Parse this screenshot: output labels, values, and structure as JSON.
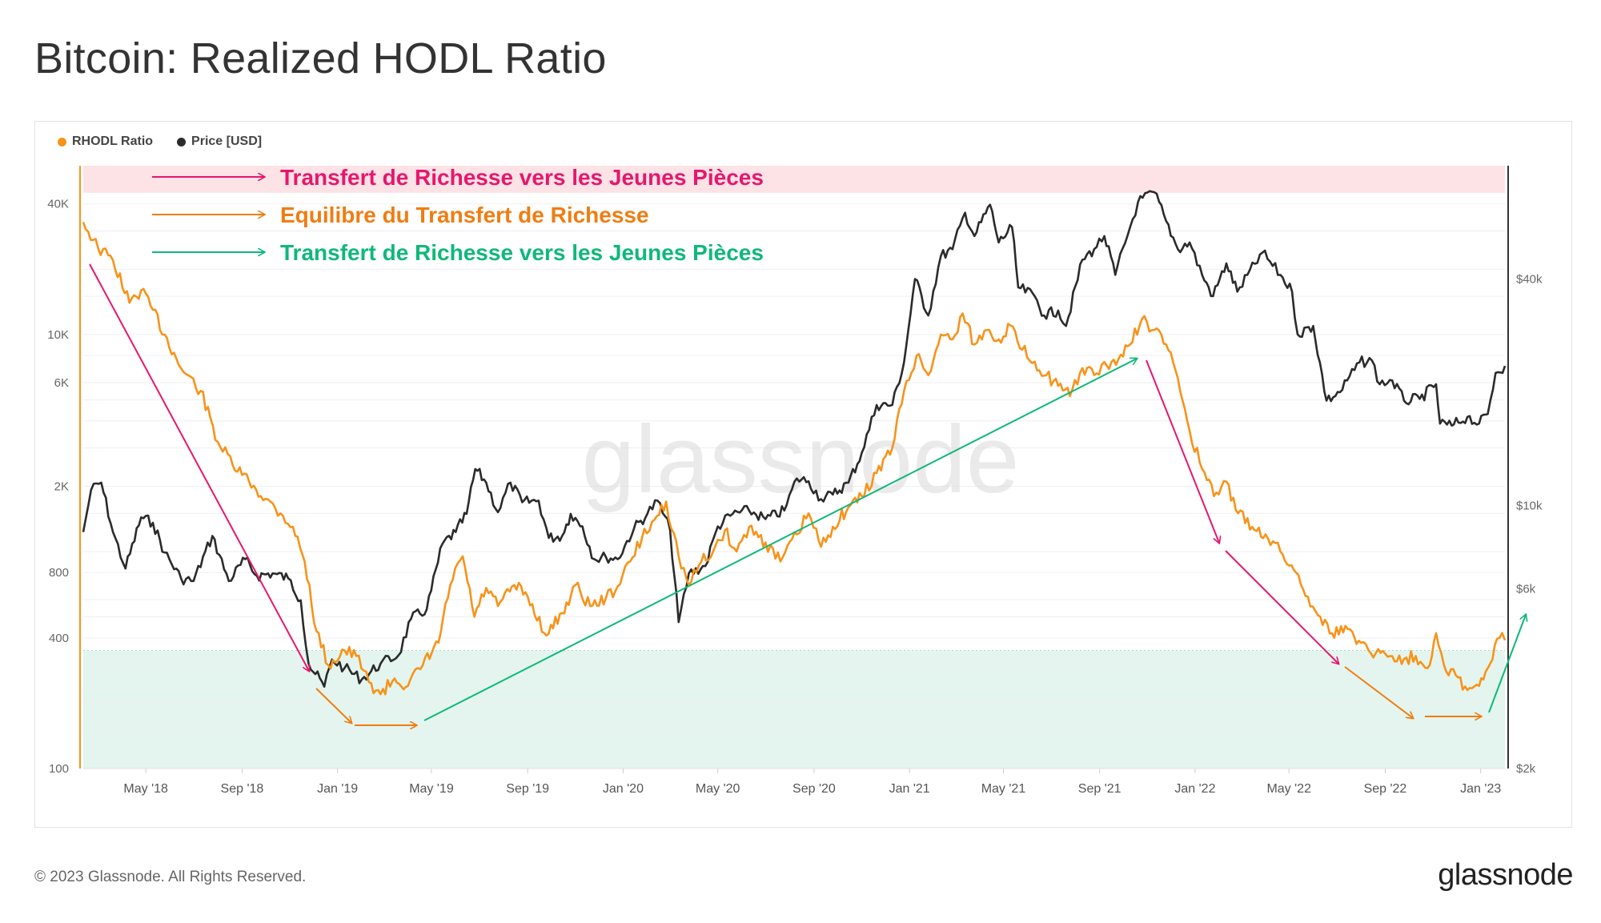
{
  "title": "Bitcoin: Realized HODL Ratio",
  "footer": {
    "copyright": "© 2023 Glassnode. All Rights Reserved.",
    "logo": "glassnode",
    "watermark": "glassnode"
  },
  "colors": {
    "rhodl": "#f7931a",
    "price": "#2b2b2b",
    "magenta": "#e6176d",
    "orange": "#f07d12",
    "green": "#0fb87a",
    "top_band": "#fde3e6",
    "bottom_band": "#e3f5ee"
  },
  "annotations": [
    {
      "text": "Transfert de Richesse vers les Jeunes Pièces",
      "color": "#e6176d"
    },
    {
      "text": "Equilibre du Transfert de Richesse",
      "color": "#f07d12"
    },
    {
      "text": "Transfert de Richesse vers les Jeunes Pièces",
      "color": "#0fb87a"
    }
  ],
  "chart_data": {
    "type": "line",
    "title": "Bitcoin: Realized HODL Ratio",
    "x_ticks": [
      "May '18",
      "Sep '18",
      "Jan '19",
      "May '19",
      "Sep '19",
      "Jan '20",
      "May '20",
      "Sep '20",
      "Jan '21",
      "May '21",
      "Sep '21",
      "Jan '22",
      "May '22",
      "Sep '22",
      "Jan '23"
    ],
    "x_range": [
      "2018-02-10",
      "2023-02-01"
    ],
    "y_left": {
      "scale": "log",
      "ticks": [
        "100",
        "400",
        "800",
        "2K",
        "6K",
        "10K",
        "40K"
      ],
      "tick_values": [
        100,
        400,
        800,
        2000,
        6000,
        10000,
        40000
      ],
      "range": [
        100,
        60000
      ]
    },
    "y_right": {
      "scale": "log",
      "ticks": [
        "$2k",
        "$6k",
        "$10k",
        "$40k"
      ],
      "tick_values": [
        2000,
        6000,
        10000,
        40000
      ],
      "range": [
        2000,
        80000
      ]
    },
    "bands": [
      {
        "axis": "left",
        "from": 45000,
        "to": 60000,
        "color": "#fde3e6"
      },
      {
        "axis": "left",
        "from": 100,
        "to": 350,
        "color": "#e3f5ee"
      }
    ],
    "legend": {
      "placement": "top-left"
    },
    "series": [
      {
        "name": "RHODL Ratio",
        "axis": "left",
        "color": "#f7931a",
        "points": [
          [
            "2018-02-10",
            33000
          ],
          [
            "2018-03-01",
            25000
          ],
          [
            "2018-03-20",
            22000
          ],
          [
            "2018-04-10",
            14000
          ],
          [
            "2018-04-25",
            16000
          ],
          [
            "2018-05-10",
            13000
          ],
          [
            "2018-05-25",
            10000
          ],
          [
            "2018-06-15",
            7000
          ],
          [
            "2018-07-10",
            5500
          ],
          [
            "2018-08-01",
            3200
          ],
          [
            "2018-08-20",
            2500
          ],
          [
            "2018-09-10",
            2100
          ],
          [
            "2018-10-01",
            1750
          ],
          [
            "2018-10-20",
            1500
          ],
          [
            "2018-11-05",
            1300
          ],
          [
            "2018-11-20",
            900
          ],
          [
            "2018-12-05",
            430
          ],
          [
            "2018-12-20",
            300
          ],
          [
            "2019-01-10",
            350
          ],
          [
            "2019-01-25",
            330
          ],
          [
            "2019-02-10",
            250
          ],
          [
            "2019-02-25",
            220
          ],
          [
            "2019-03-15",
            260
          ],
          [
            "2019-04-01",
            240
          ],
          [
            "2019-04-20",
            300
          ],
          [
            "2019-05-10",
            380
          ],
          [
            "2019-05-25",
            700
          ],
          [
            "2019-06-10",
            950
          ],
          [
            "2019-06-25",
            500
          ],
          [
            "2019-07-10",
            680
          ],
          [
            "2019-07-25",
            560
          ],
          [
            "2019-08-15",
            700
          ],
          [
            "2019-09-01",
            620
          ],
          [
            "2019-09-25",
            410
          ],
          [
            "2019-10-15",
            520
          ],
          [
            "2019-11-01",
            700
          ],
          [
            "2019-11-20",
            560
          ],
          [
            "2019-12-10",
            610
          ],
          [
            "2019-12-25",
            690
          ],
          [
            "2020-01-10",
            900
          ],
          [
            "2020-01-25",
            1150
          ],
          [
            "2020-02-10",
            1400
          ],
          [
            "2020-02-25",
            1700
          ],
          [
            "2020-03-12",
            950
          ],
          [
            "2020-03-25",
            700
          ],
          [
            "2020-04-10",
            900
          ],
          [
            "2020-04-25",
            1000
          ],
          [
            "2020-05-10",
            1250
          ],
          [
            "2020-05-25",
            1000
          ],
          [
            "2020-06-10",
            1300
          ],
          [
            "2020-07-01",
            1100
          ],
          [
            "2020-07-20",
            900
          ],
          [
            "2020-08-10",
            1200
          ],
          [
            "2020-08-25",
            1500
          ],
          [
            "2020-09-10",
            1050
          ],
          [
            "2020-09-25",
            1300
          ],
          [
            "2020-10-15",
            1600
          ],
          [
            "2020-11-01",
            1800
          ],
          [
            "2020-11-20",
            2300
          ],
          [
            "2020-12-10",
            3000
          ],
          [
            "2020-12-25",
            5500
          ],
          [
            "2021-01-10",
            8000
          ],
          [
            "2021-01-25",
            6500
          ],
          [
            "2021-02-10",
            10000
          ],
          [
            "2021-02-25",
            9500
          ],
          [
            "2021-03-10",
            12500
          ],
          [
            "2021-03-25",
            9000
          ],
          [
            "2021-04-10",
            10500
          ],
          [
            "2021-04-25",
            9500
          ],
          [
            "2021-05-10",
            11000
          ],
          [
            "2021-05-25",
            8500
          ],
          [
            "2021-06-10",
            7500
          ],
          [
            "2021-06-25",
            6500
          ],
          [
            "2021-07-10",
            5800
          ],
          [
            "2021-07-25",
            5200
          ],
          [
            "2021-08-10",
            7000
          ],
          [
            "2021-08-25",
            6500
          ],
          [
            "2021-09-10",
            7200
          ],
          [
            "2021-09-25",
            7700
          ],
          [
            "2021-10-10",
            9000
          ],
          [
            "2021-10-25",
            11800
          ],
          [
            "2021-11-10",
            10500
          ],
          [
            "2021-11-25",
            9000
          ],
          [
            "2021-12-10",
            6300
          ],
          [
            "2021-12-25",
            3600
          ],
          [
            "2022-01-10",
            2400
          ],
          [
            "2022-01-25",
            1800
          ],
          [
            "2022-02-10",
            2100
          ],
          [
            "2022-02-25",
            1500
          ],
          [
            "2022-03-15",
            1300
          ],
          [
            "2022-04-01",
            1200
          ],
          [
            "2022-04-20",
            1000
          ],
          [
            "2022-05-10",
            800
          ],
          [
            "2022-05-25",
            620
          ],
          [
            "2022-06-10",
            500
          ],
          [
            "2022-06-25",
            420
          ],
          [
            "2022-07-15",
            440
          ],
          [
            "2022-08-01",
            380
          ],
          [
            "2022-08-20",
            340
          ],
          [
            "2022-09-10",
            330
          ],
          [
            "2022-09-25",
            320
          ],
          [
            "2022-10-10",
            330
          ],
          [
            "2022-10-25",
            290
          ],
          [
            "2022-11-05",
            420
          ],
          [
            "2022-11-15",
            300
          ],
          [
            "2022-11-30",
            270
          ],
          [
            "2022-12-15",
            230
          ],
          [
            "2022-12-30",
            240
          ],
          [
            "2023-01-10",
            290
          ],
          [
            "2023-01-25",
            400
          ],
          [
            "2023-02-01",
            390
          ]
        ]
      },
      {
        "name": "Price [USD]",
        "axis": "right",
        "color": "#2b2b2b",
        "points": [
          [
            "2018-02-10",
            8500
          ],
          [
            "2018-02-20",
            11000
          ],
          [
            "2018-03-05",
            11500
          ],
          [
            "2018-03-20",
            8500
          ],
          [
            "2018-04-05",
            6800
          ],
          [
            "2018-04-25",
            9300
          ],
          [
            "2018-05-10",
            9000
          ],
          [
            "2018-05-25",
            7500
          ],
          [
            "2018-06-15",
            6400
          ],
          [
            "2018-07-01",
            6300
          ],
          [
            "2018-07-25",
            8300
          ],
          [
            "2018-08-15",
            6300
          ],
          [
            "2018-09-05",
            7200
          ],
          [
            "2018-09-20",
            6500
          ],
          [
            "2018-10-10",
            6600
          ],
          [
            "2018-10-30",
            6400
          ],
          [
            "2018-11-15",
            5600
          ],
          [
            "2018-11-25",
            3800
          ],
          [
            "2018-12-15",
            3300
          ],
          [
            "2018-12-25",
            3900
          ],
          [
            "2019-01-10",
            3700
          ],
          [
            "2019-02-01",
            3450
          ],
          [
            "2019-02-25",
            3800
          ],
          [
            "2019-03-20",
            4000
          ],
          [
            "2019-04-05",
            5000
          ],
          [
            "2019-04-25",
            5300
          ],
          [
            "2019-05-15",
            7900
          ],
          [
            "2019-06-01",
            8500
          ],
          [
            "2019-06-15",
            9500
          ],
          [
            "2019-06-26",
            12500
          ],
          [
            "2019-07-10",
            11500
          ],
          [
            "2019-07-25",
            9600
          ],
          [
            "2019-08-10",
            11500
          ],
          [
            "2019-08-25",
            10200
          ],
          [
            "2019-09-15",
            10300
          ],
          [
            "2019-09-28",
            8200
          ],
          [
            "2019-10-15",
            8300
          ],
          [
            "2019-10-26",
            9500
          ],
          [
            "2019-11-10",
            8800
          ],
          [
            "2019-11-25",
            7200
          ],
          [
            "2019-12-10",
            7300
          ],
          [
            "2019-12-25",
            7200
          ],
          [
            "2020-01-15",
            8700
          ],
          [
            "2020-02-01",
            9500
          ],
          [
            "2020-02-14",
            10300
          ],
          [
            "2020-03-01",
            8600
          ],
          [
            "2020-03-12",
            4900
          ],
          [
            "2020-03-25",
            6600
          ],
          [
            "2020-04-15",
            6900
          ],
          [
            "2020-05-01",
            8800
          ],
          [
            "2020-05-20",
            9500
          ],
          [
            "2020-06-10",
            9700
          ],
          [
            "2020-07-01",
            9200
          ],
          [
            "2020-07-25",
            9700
          ],
          [
            "2020-08-10",
            11800
          ],
          [
            "2020-08-25",
            11600
          ],
          [
            "2020-09-10",
            10400
          ],
          [
            "2020-09-25",
            10700
          ],
          [
            "2020-10-15",
            11500
          ],
          [
            "2020-11-01",
            13800
          ],
          [
            "2020-11-20",
            18500
          ],
          [
            "2020-12-10",
            18500
          ],
          [
            "2020-12-25",
            24000
          ],
          [
            "2021-01-08",
            40000
          ],
          [
            "2021-01-25",
            32000
          ],
          [
            "2021-02-10",
            46000
          ],
          [
            "2021-02-25",
            48000
          ],
          [
            "2021-03-13",
            60000
          ],
          [
            "2021-03-25",
            52000
          ],
          [
            "2021-04-14",
            63000
          ],
          [
            "2021-04-25",
            50000
          ],
          [
            "2021-05-12",
            55000
          ],
          [
            "2021-05-20",
            38000
          ],
          [
            "2021-06-10",
            36000
          ],
          [
            "2021-06-22",
            32000
          ],
          [
            "2021-07-10",
            33000
          ],
          [
            "2021-07-20",
            30000
          ],
          [
            "2021-08-10",
            45000
          ],
          [
            "2021-08-25",
            48000
          ],
          [
            "2021-09-07",
            52000
          ],
          [
            "2021-09-21",
            41000
          ],
          [
            "2021-10-10",
            55000
          ],
          [
            "2021-10-20",
            64000
          ],
          [
            "2021-11-10",
            68000
          ],
          [
            "2021-11-25",
            57000
          ],
          [
            "2021-12-10",
            48000
          ],
          [
            "2021-12-25",
            50000
          ],
          [
            "2022-01-10",
            41000
          ],
          [
            "2022-01-24",
            36000
          ],
          [
            "2022-02-10",
            44000
          ],
          [
            "2022-02-24",
            37000
          ],
          [
            "2022-03-28",
            47000
          ],
          [
            "2022-04-20",
            41000
          ],
          [
            "2022-05-05",
            37000
          ],
          [
            "2022-05-12",
            28500
          ],
          [
            "2022-06-01",
            30000
          ],
          [
            "2022-06-18",
            19000
          ],
          [
            "2022-07-05",
            20000
          ],
          [
            "2022-07-30",
            24000
          ],
          [
            "2022-08-15",
            24300
          ],
          [
            "2022-08-25",
            21000
          ],
          [
            "2022-09-10",
            21500
          ],
          [
            "2022-09-25",
            19000
          ],
          [
            "2022-10-15",
            19200
          ],
          [
            "2022-11-05",
            21000
          ],
          [
            "2022-11-10",
            16500
          ],
          [
            "2022-11-25",
            16300
          ],
          [
            "2022-12-15",
            17200
          ],
          [
            "2022-12-30",
            16500
          ],
          [
            "2023-01-10",
            17500
          ],
          [
            "2023-01-20",
            22500
          ],
          [
            "2023-02-01",
            23500
          ]
        ]
      }
    ]
  }
}
